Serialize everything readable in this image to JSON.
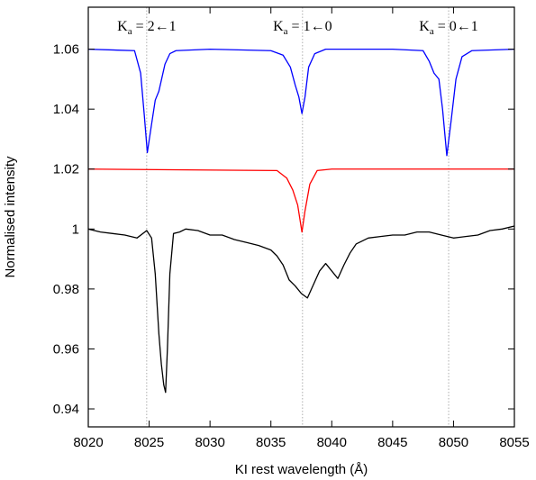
{
  "chart_data": {
    "type": "line",
    "xlabel": "KI rest wavelength (Å)",
    "ylabel": "Normalised intensity",
    "xlim": [
      8020,
      8055
    ],
    "ylim": [
      0.934,
      1.074
    ],
    "xticks": [
      8020,
      8025,
      8030,
      8035,
      8040,
      8045,
      8050,
      8055
    ],
    "yticks": [
      0.94,
      0.96,
      0.98,
      1,
      1.02,
      1.04,
      1.06
    ],
    "xtick_labels": [
      "8020",
      "8025",
      "8030",
      "8035",
      "8040",
      "8045",
      "8050",
      "8055"
    ],
    "ytick_labels": [
      "0.94",
      "0.96",
      "0.98",
      "1",
      "1.02",
      "1.04",
      "1.06"
    ],
    "grid": false,
    "legend": "none",
    "reference_lines": [
      8024.8,
      8037.6,
      8049.6
    ],
    "annotations": [
      {
        "main": "K",
        "sub": "a",
        "rest": " = 2←1",
        "x": 8024.8
      },
      {
        "main": "K",
        "sub": "a",
        "rest": " = 1←0",
        "x": 8037.6
      },
      {
        "main": "K",
        "sub": "a",
        "rest": " = 0←1",
        "x": 8049.6
      }
    ],
    "series": [
      {
        "color": "#0000ff",
        "x": [
          8020,
          8023.8,
          8024.3,
          8024.6,
          8024.85,
          8025.2,
          8025.5,
          8025.8,
          8026.3,
          8026.7,
          8027.2,
          8030,
          8035,
          8036.0,
          8036.6,
          8037.0,
          8037.3,
          8037.55,
          8037.8,
          8038.1,
          8038.6,
          8039.5,
          8045,
          8047.5,
          8048.0,
          8048.4,
          8048.8,
          8049.1,
          8049.45,
          8049.8,
          8050.2,
          8050.7,
          8051.5,
          8055
        ],
        "values": [
          1.06,
          1.0595,
          1.052,
          1.038,
          1.0255,
          1.035,
          1.043,
          1.046,
          1.055,
          1.0585,
          1.0595,
          1.06,
          1.0595,
          1.058,
          1.054,
          1.048,
          1.044,
          1.0385,
          1.044,
          1.054,
          1.0585,
          1.06,
          1.06,
          1.0595,
          1.056,
          1.052,
          1.05,
          1.04,
          1.0245,
          1.036,
          1.05,
          1.0575,
          1.0595,
          1.06
        ]
      },
      {
        "color": "#ff0000",
        "x": [
          8020,
          8035.5,
          8036.3,
          8036.8,
          8037.2,
          8037.55,
          8037.8,
          8038.2,
          8038.8,
          8040,
          8055
        ],
        "values": [
          1.02,
          1.0195,
          1.017,
          1.013,
          1.008,
          0.999,
          1.006,
          1.015,
          1.0195,
          1.02,
          1.02
        ]
      },
      {
        "color": "#000000",
        "x": [
          8020,
          8021,
          8022,
          8023,
          8024,
          8024.8,
          8025.2,
          8025.5,
          8025.8,
          8026.0,
          8026.2,
          8026.35,
          8026.5,
          8026.7,
          8027.0,
          8027.5,
          8028,
          8029,
          8030,
          8031,
          8032,
          8033,
          8034,
          8035,
          8035.5,
          8036,
          8036.5,
          8037,
          8037.5,
          8038,
          8038.5,
          8039,
          8039.5,
          8040,
          8040.5,
          8041,
          8041.5,
          8042,
          8043,
          8044,
          8045,
          8046,
          8047,
          8048,
          8049,
          8050,
          8051,
          8052,
          8053,
          8054,
          8055
        ],
        "values": [
          1.0,
          0.999,
          0.9985,
          0.998,
          0.997,
          0.9995,
          0.997,
          0.985,
          0.965,
          0.955,
          0.948,
          0.9455,
          0.96,
          0.985,
          0.9985,
          0.999,
          1.0,
          0.9995,
          0.998,
          0.998,
          0.9965,
          0.9955,
          0.9945,
          0.993,
          0.991,
          0.988,
          0.983,
          0.981,
          0.9785,
          0.977,
          0.9815,
          0.986,
          0.9885,
          0.986,
          0.9835,
          0.988,
          0.992,
          0.995,
          0.997,
          0.9975,
          0.998,
          0.998,
          0.999,
          0.999,
          0.998,
          0.997,
          0.9975,
          0.998,
          0.9995,
          1.0,
          1.001
        ]
      }
    ]
  }
}
